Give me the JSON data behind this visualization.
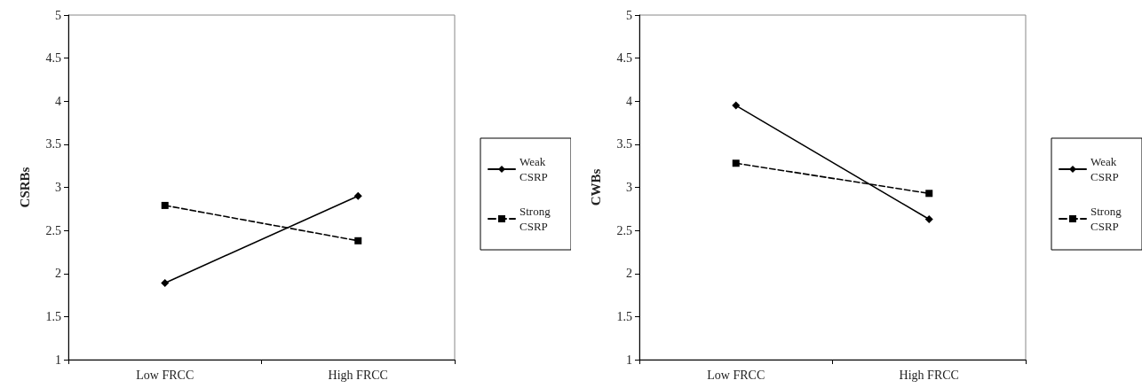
{
  "chart_data": [
    {
      "type": "line",
      "ylabel": "CSRBs",
      "categories": [
        "Low FRCC",
        "High FRCC"
      ],
      "ylim": [
        1,
        5
      ],
      "yticks": [
        1,
        1.5,
        2,
        2.5,
        3,
        3.5,
        4,
        4.5,
        5
      ],
      "grid": false,
      "legend": "right",
      "series": [
        {
          "name": "Weak CSRP",
          "color": "#000000",
          "values": [
            1.89,
            2.9
          ],
          "marker": "diamond",
          "line_style": "solid"
        },
        {
          "name": "Strong CSRP",
          "color": "#000000",
          "values": [
            2.79,
            2.38
          ],
          "marker": "square",
          "line_style": "dashed"
        }
      ]
    },
    {
      "type": "line",
      "ylabel": "CWBs",
      "categories": [
        "Low FRCC",
        "High FRCC"
      ],
      "ylim": [
        1,
        5
      ],
      "yticks": [
        1,
        1.5,
        2,
        2.5,
        3,
        3.5,
        4,
        4.5,
        5
      ],
      "grid": false,
      "legend": "right",
      "series": [
        {
          "name": "Weak CSRP",
          "color": "#000000",
          "values": [
            3.95,
            2.63
          ],
          "marker": "diamond",
          "line_style": "solid"
        },
        {
          "name": "Strong CSRP",
          "color": "#000000",
          "values": [
            3.28,
            2.93
          ],
          "marker": "square",
          "line_style": "dashed"
        }
      ]
    }
  ]
}
